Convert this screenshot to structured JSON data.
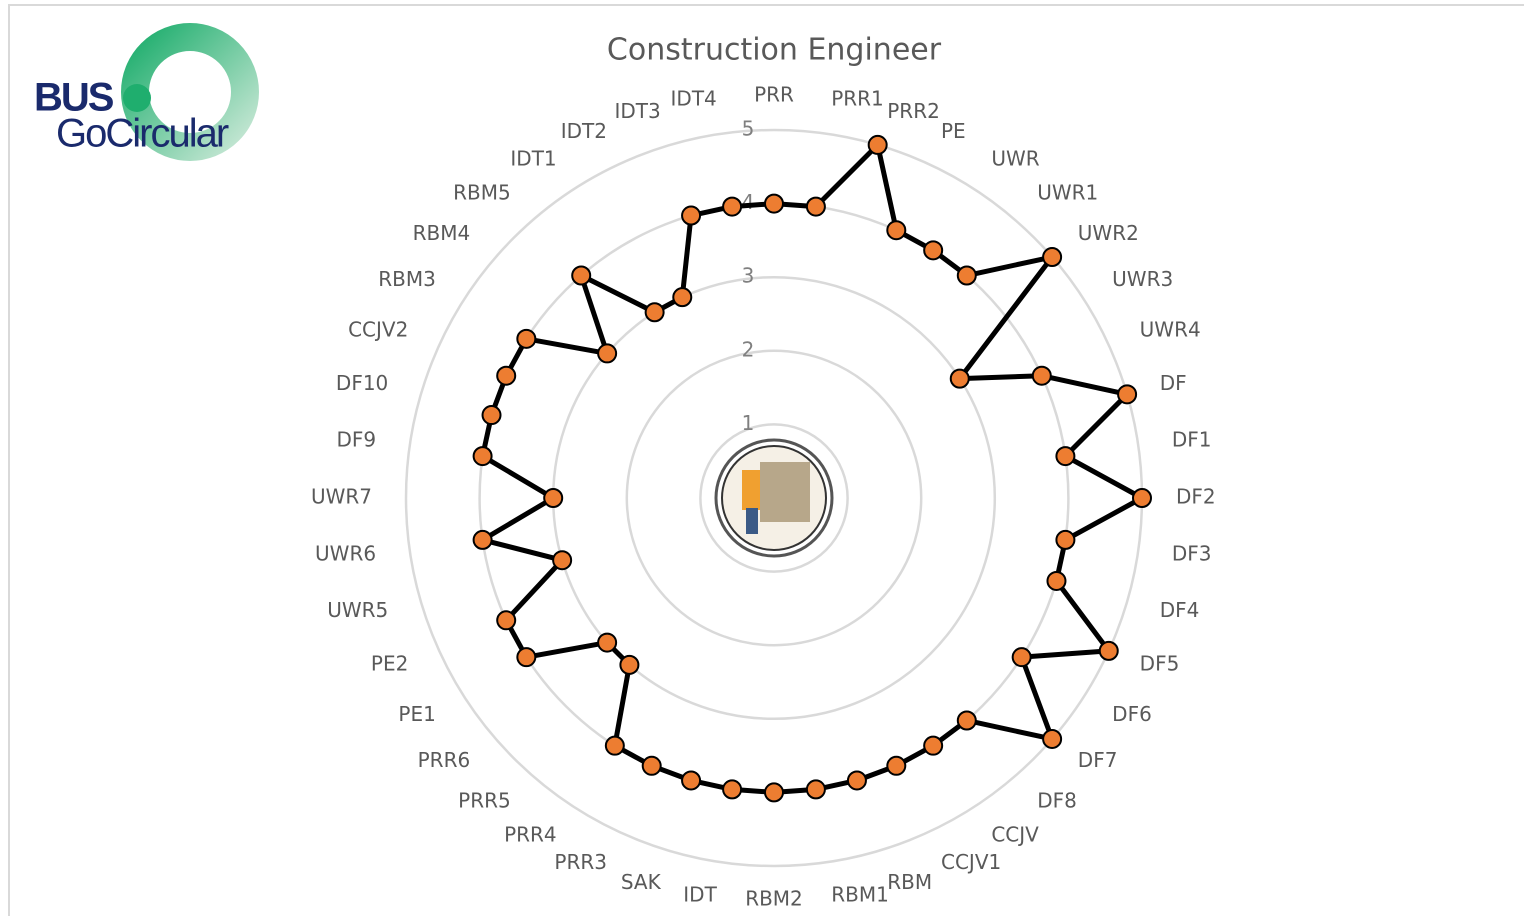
{
  "logo": {
    "line1": "BUS",
    "line2": "GoCircular"
  },
  "chart_data": {
    "type": "radar",
    "title": "Construction Engineer",
    "categories": [
      "PRR",
      "PRR1",
      "PRR2",
      "PE",
      "UWR",
      "UWR1",
      "UWR2",
      "UWR3",
      "UWR4",
      "DF",
      "DF1",
      "DF2",
      "DF3",
      "DF4",
      "DF5",
      "DF6",
      "DF7",
      "DF8",
      "CCJV",
      "CCJV1",
      "RBM",
      "RBM1",
      "RBM2",
      "IDT",
      "SAK",
      "PRR3",
      "PRR4",
      "PRR5",
      "PRR6",
      "PE1",
      "PE2",
      "UWR5",
      "UWR6",
      "UWR7",
      "DF9",
      "DF10",
      "CCJV2",
      "RBM3",
      "RBM4",
      "RBM5",
      "IDT1",
      "IDT2",
      "IDT3",
      "IDT4"
    ],
    "values": [
      4,
      4,
      5,
      4,
      4,
      4,
      5,
      3,
      4,
      5,
      4,
      5,
      4,
      4,
      5,
      4,
      5,
      4,
      4,
      4,
      4,
      4,
      4,
      4,
      4,
      4,
      4,
      3,
      3,
      4,
      4,
      3,
      4,
      3,
      4,
      4,
      4,
      4,
      3,
      4,
      3,
      3,
      4,
      4
    ],
    "color": "#000000",
    "marker_color": "#ED7D31",
    "grid_color": "#d9d9d9",
    "ylim": [
      0,
      5
    ],
    "yticks": [
      1,
      2,
      3,
      4,
      5
    ],
    "grid": true
  }
}
